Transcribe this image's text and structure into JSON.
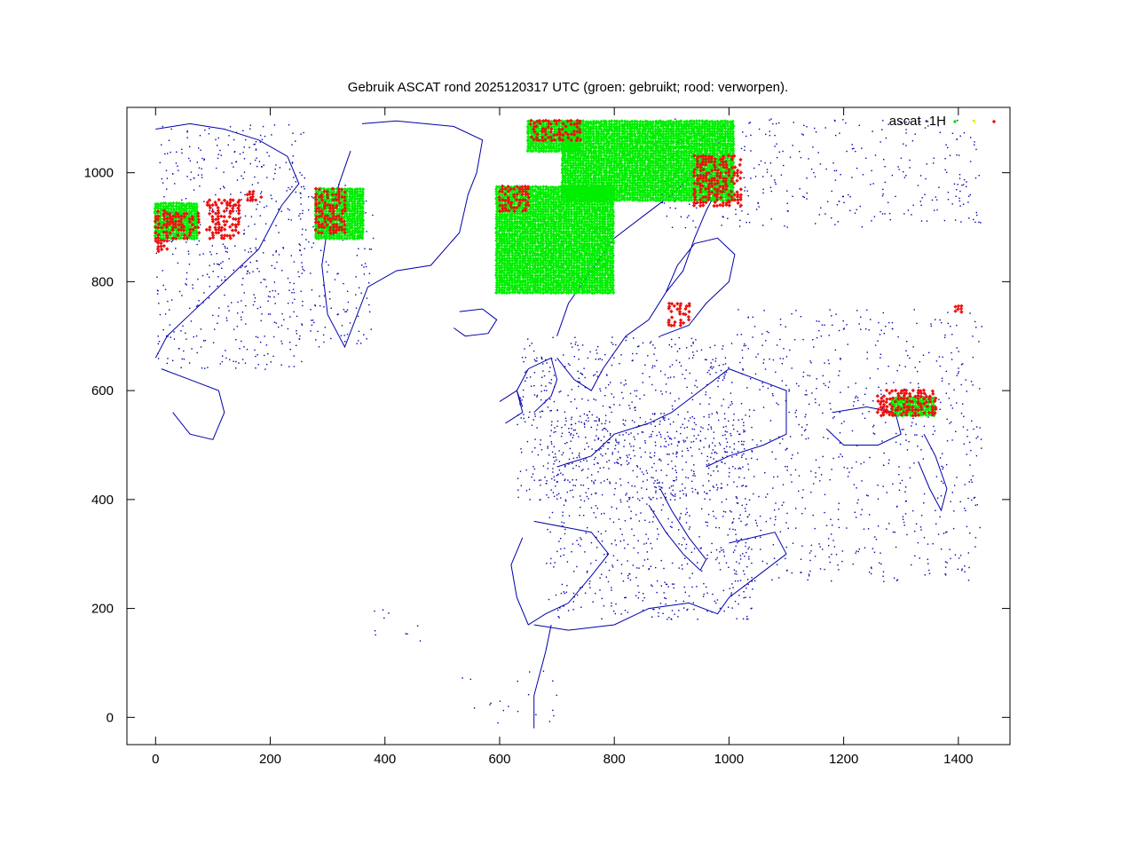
{
  "chart_data": {
    "type": "scatter",
    "title": "Gebruik ASCAT rond 2025120317 UTC (groen: gebruikt; rood: verworpen).",
    "xlabel": "",
    "ylabel": "",
    "xlim": [
      -50,
      1490
    ],
    "ylim": [
      -50,
      1120
    ],
    "x_ticks": [
      0,
      200,
      400,
      600,
      800,
      1000,
      1200,
      1400
    ],
    "y_ticks": [
      0,
      200,
      400,
      600,
      800,
      1000
    ],
    "grid": false,
    "legend": {
      "placement": "top-right",
      "label": "ascat -1H"
    },
    "colors": {
      "used": "#00ee00",
      "flagged": "#ffff00",
      "rejected": "#ee1111",
      "coastline": "#0000aa",
      "frame": "#000000"
    },
    "series": [
      {
        "name": "ascat -1H",
        "role": "used",
        "color": "#00ee00",
        "regions": [
          {
            "x": [
              0,
              75
            ],
            "y": [
              880,
              945
            ]
          },
          {
            "x": [
              280,
              365
            ],
            "y": [
              880,
              970
            ]
          },
          {
            "x": [
              595,
              800
            ],
            "y": [
              780,
              975
            ]
          },
          {
            "x": [
              710,
              1010
            ],
            "y": [
              950,
              1095
            ]
          },
          {
            "x": [
              650,
              740
            ],
            "y": [
              1040,
              1095
            ]
          },
          {
            "x": [
              1285,
              1360
            ],
            "y": [
              555,
              590
            ]
          }
        ]
      },
      {
        "name": "",
        "role": "flagged",
        "color": "#ffff00",
        "regions": []
      },
      {
        "name": "",
        "role": "rejected",
        "color": "#ee1111",
        "regions": [
          {
            "x": [
              0,
              20
            ],
            "y": [
              855,
              930
            ]
          },
          {
            "x": [
              20,
              75
            ],
            "y": [
              880,
              925
            ]
          },
          {
            "x": [
              90,
              145
            ],
            "y": [
              880,
              950
            ]
          },
          {
            "x": [
              160,
              185
            ],
            "y": [
              950,
              965
            ]
          },
          {
            "x": [
              280,
              330
            ],
            "y": [
              890,
              970
            ]
          },
          {
            "x": [
              600,
              650
            ],
            "y": [
              930,
              975
            ]
          },
          {
            "x": [
              655,
              740
            ],
            "y": [
              1060,
              1095
            ]
          },
          {
            "x": [
              940,
              1020
            ],
            "y": [
              940,
              1030
            ]
          },
          {
            "x": [
              895,
              930
            ],
            "y": [
              720,
              760
            ]
          },
          {
            "x": [
              1260,
              1360
            ],
            "y": [
              555,
              600
            ]
          },
          {
            "x": [
              1395,
              1405
            ],
            "y": [
              745,
              760
            ]
          }
        ]
      }
    ],
    "background_map": "coastlines"
  }
}
